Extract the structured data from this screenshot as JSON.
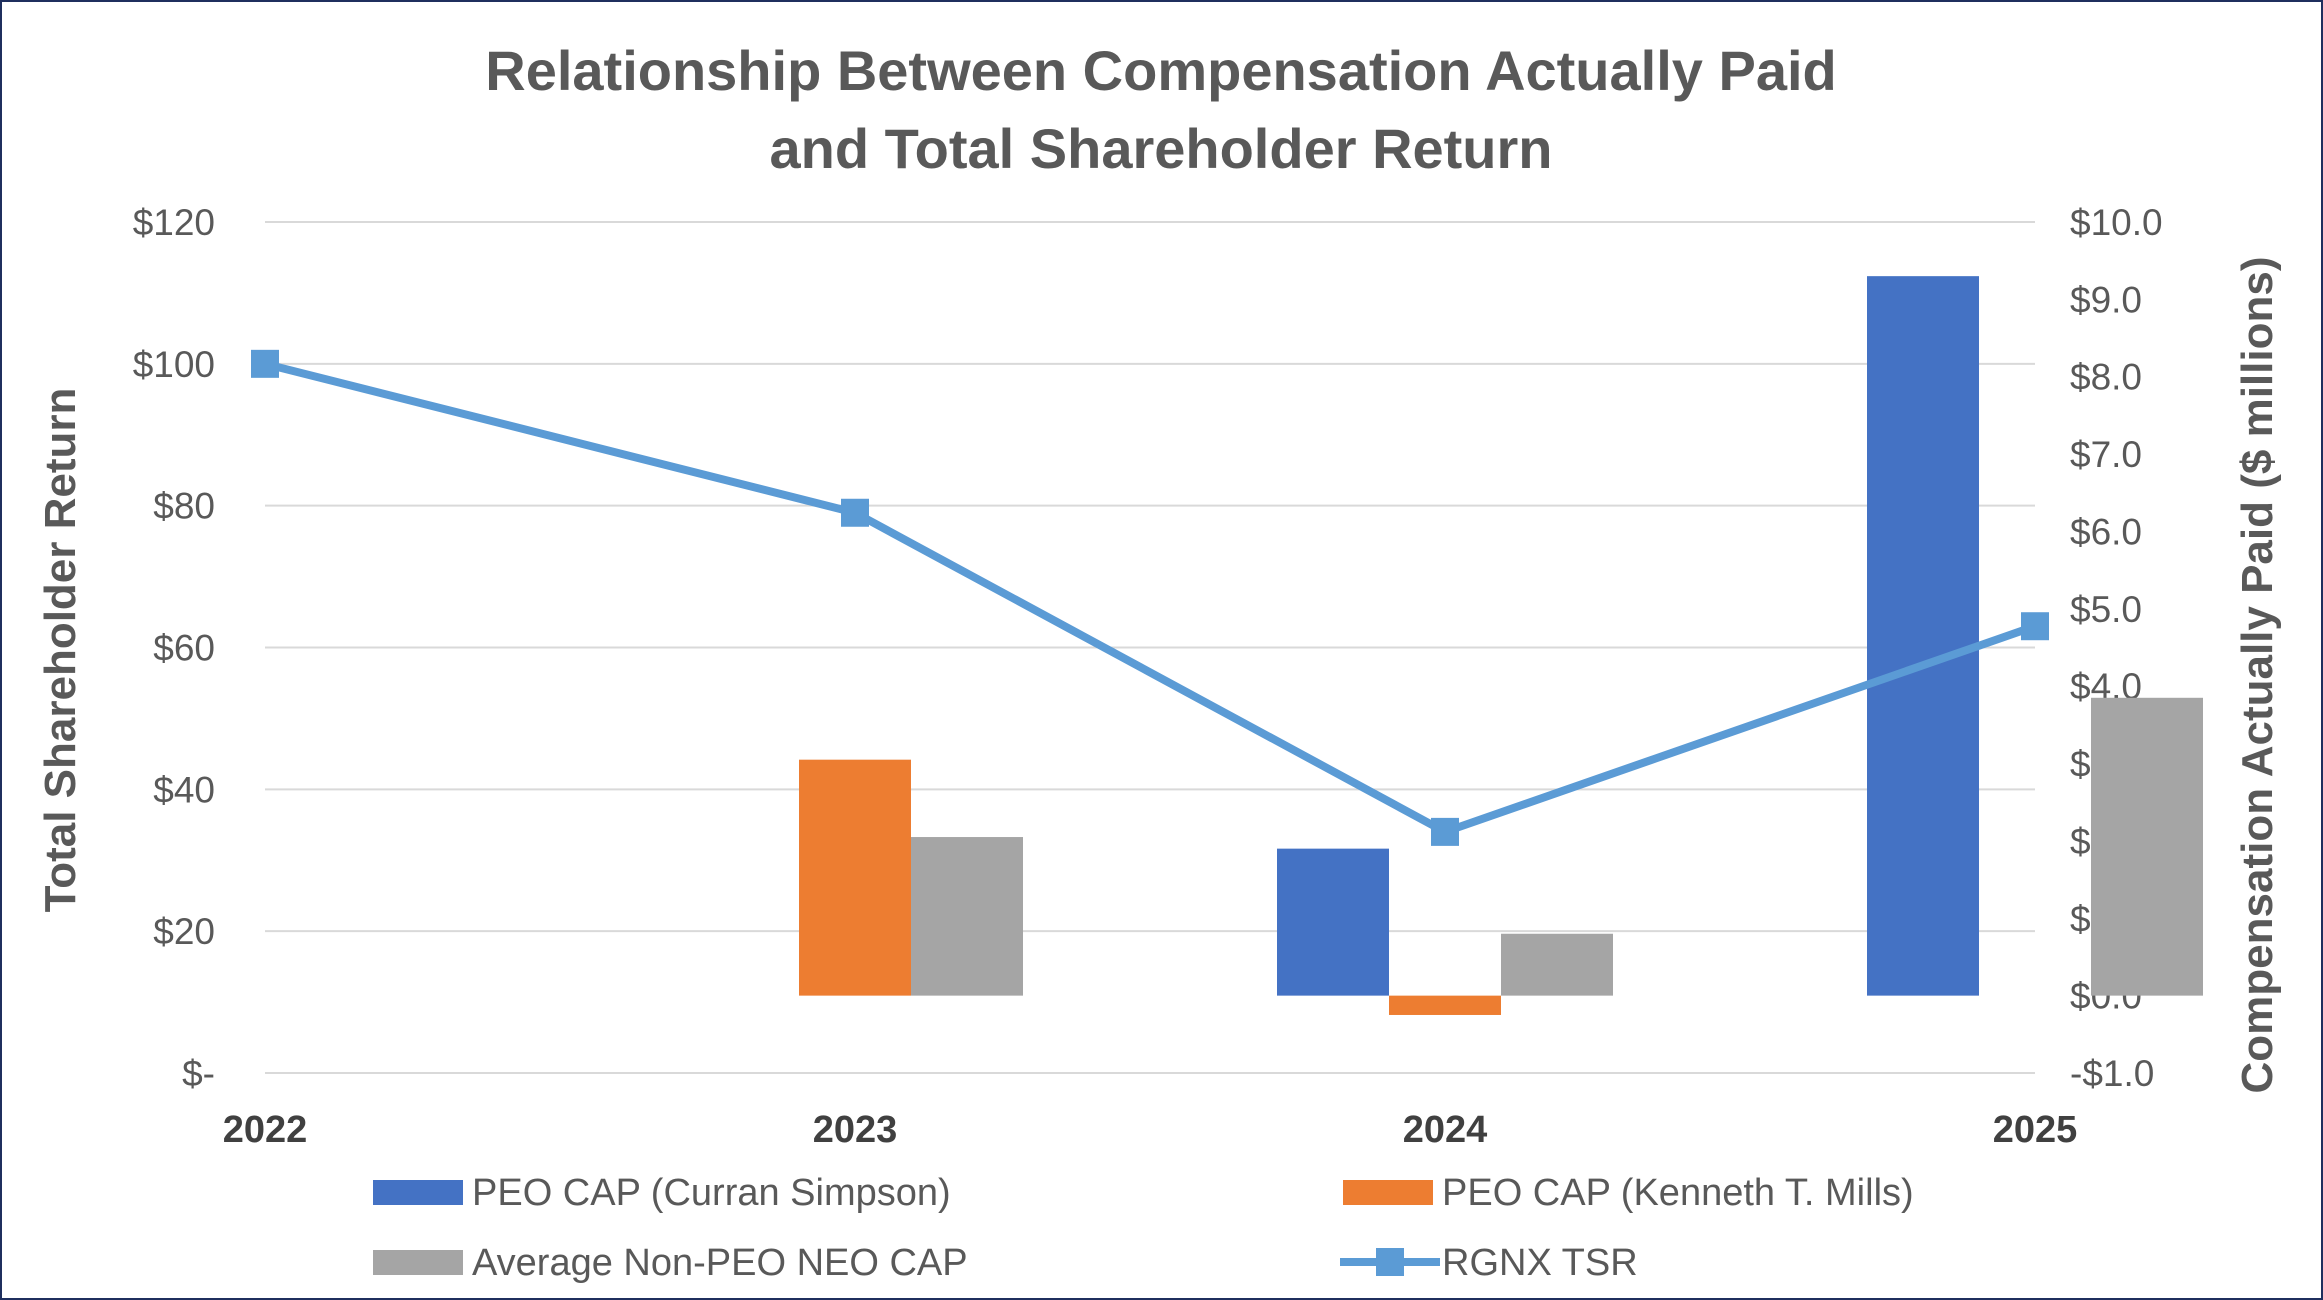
{
  "chart_data": {
    "type": "bar",
    "title_lines": [
      "Relationship Between Compensation Actually Paid",
      "and Total Shareholder Return"
    ],
    "categories": [
      "2022",
      "2023",
      "2024",
      "2025"
    ],
    "left_axis": {
      "label": "Total Shareholder Return",
      "ylim": [
        0,
        120
      ],
      "ticks": [
        0,
        20,
        40,
        60,
        80,
        100,
        120
      ],
      "tick_labels": [
        "$-",
        "$20",
        "$40",
        "$60",
        "$80",
        "$100",
        "$120"
      ]
    },
    "right_axis": {
      "label": "Compensation Actually Paid ($ millions)",
      "ylim": [
        -1,
        10
      ],
      "ticks": [
        -1,
        0,
        1,
        2,
        3,
        4,
        5,
        6,
        7,
        8,
        9,
        10
      ],
      "tick_labels": [
        "-$1.0",
        "$0.0",
        "$1.0",
        "$2.0",
        "$3.0",
        "$4.0",
        "$5.0",
        "$6.0",
        "$7.0",
        "$8.0",
        "$9.0",
        "$10.0"
      ]
    },
    "bar_series": [
      {
        "name": "PEO CAP (Curran Simpson)",
        "color": "#4472c4",
        "values": [
          null,
          null,
          1.9,
          9.3
        ]
      },
      {
        "name": "PEO CAP (Kenneth T. Mills)",
        "color": "#ed7d31",
        "values": [
          null,
          3.05,
          -0.25,
          null
        ]
      },
      {
        "name": "Average Non-PEO NEO CAP",
        "color": "#a5a5a5",
        "values": [
          null,
          2.05,
          0.8,
          3.85
        ]
      }
    ],
    "line_series": {
      "name": "RGNX TSR",
      "color": "#5b9bd5",
      "values": [
        100,
        79,
        34,
        63
      ]
    },
    "legend_position": "bottom",
    "grid": true
  }
}
